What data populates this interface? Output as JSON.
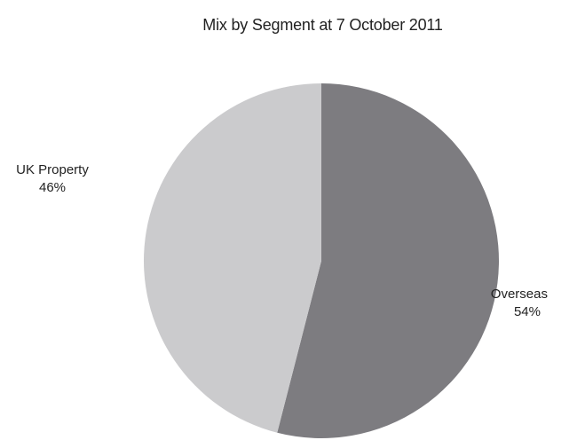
{
  "chart_data": {
    "type": "pie",
    "title": "Mix by Segment at 7 October 2011",
    "slices": [
      {
        "name": "Overseas",
        "label": "Overseas",
        "value": 54,
        "pct_label": "54%",
        "color": "#7d7c80"
      },
      {
        "name": "UK Property",
        "label": "UK Property",
        "value": 46,
        "pct_label": "46%",
        "color": "#cbcbcd"
      }
    ],
    "start_angle_deg": 0,
    "direction": "clockwise",
    "legend": "none"
  }
}
